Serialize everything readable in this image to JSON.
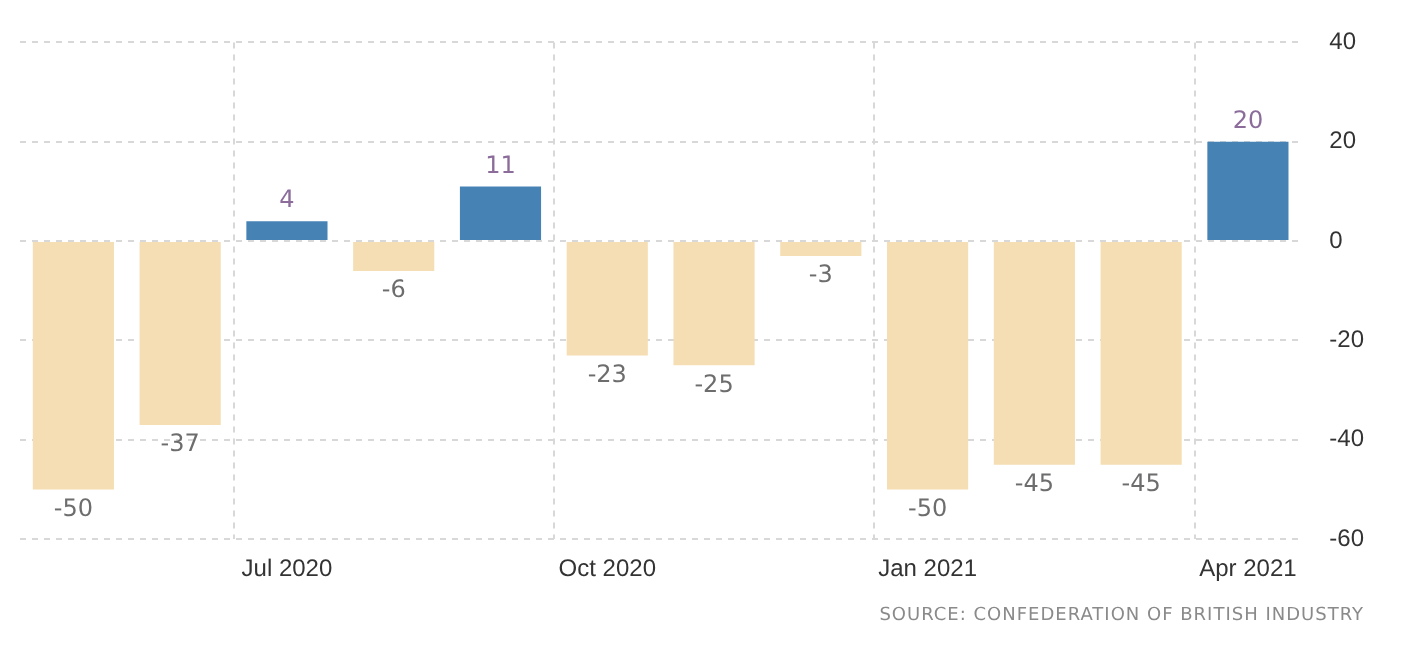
{
  "chart_data": {
    "type": "bar",
    "categories": [
      null,
      null,
      "Jul 2020",
      null,
      null,
      "Oct 2020",
      null,
      null,
      "Jan 2021",
      null,
      null,
      "Apr 2021"
    ],
    "values": [
      -50,
      -37,
      4,
      -6,
      11,
      -23,
      -25,
      -3,
      -50,
      -45,
      -45,
      20
    ],
    "colors": [
      "#f5deb3",
      "#f5deb3",
      "#4682b4",
      "#f5deb3",
      "#4682b4",
      "#f5deb3",
      "#f5deb3",
      "#f5deb3",
      "#f5deb3",
      "#f5deb3",
      "#f5deb3",
      "#4682b4"
    ],
    "ylim": [
      -60,
      40
    ],
    "yticks": [
      -60,
      -40,
      -20,
      0,
      20,
      40
    ],
    "grid": true,
    "legend": false,
    "data_labels": true,
    "annotations": [
      "SOURCE: CONFEDERATION OF BRITISH INDUSTRY"
    ]
  }
}
